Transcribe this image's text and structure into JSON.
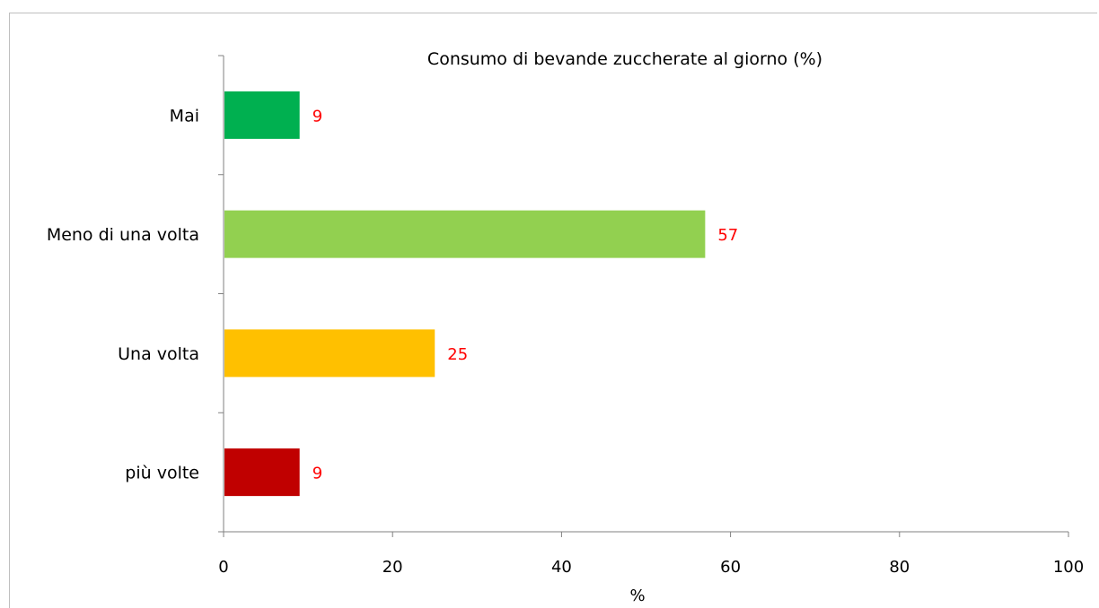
{
  "chart_data": {
    "type": "bar",
    "orientation": "horizontal",
    "title": "Consumo di bevande zuccherate al giorno (%)",
    "xlabel": "%",
    "ylabel": "",
    "xlim": [
      0,
      100
    ],
    "xticks": [
      "0",
      "20",
      "40",
      "60",
      "80",
      "100"
    ],
    "categories": [
      "Mai",
      "Meno di una volta",
      "Una volta",
      "più volte"
    ],
    "values": [
      9,
      57,
      25,
      9
    ],
    "bar_colors": [
      "#00b050",
      "#92d050",
      "#ffc000",
      "#c00000"
    ],
    "data_label_color": "#ff0000",
    "grid": false,
    "legend": "none"
  }
}
